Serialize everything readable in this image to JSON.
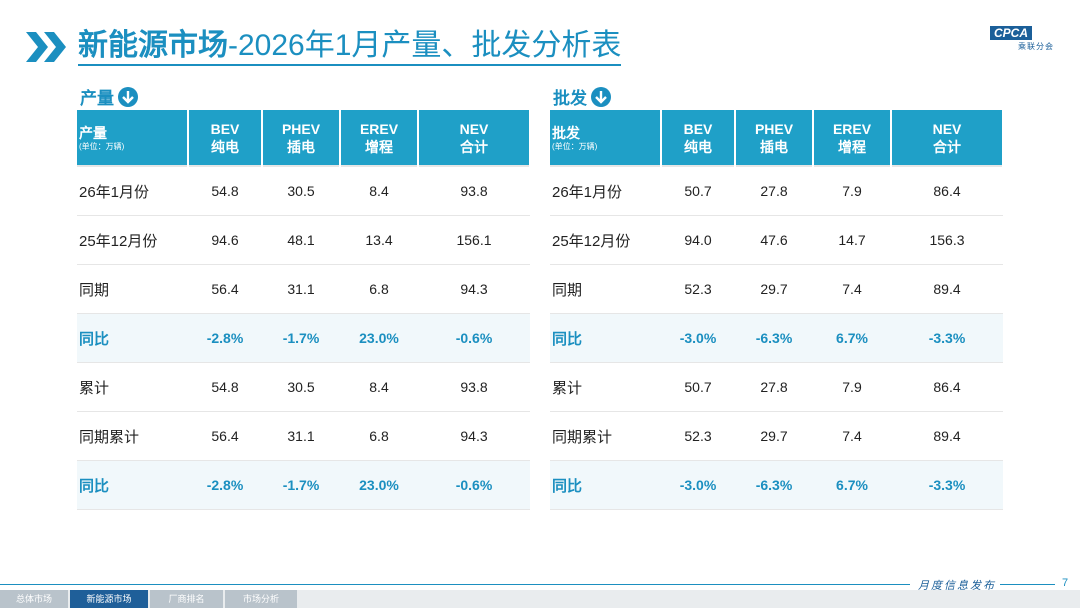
{
  "header": {
    "title_main": "新能源市场",
    "title_rest": "-2026年1月产量、批发分析表",
    "logo": "CPCA",
    "logo_sub": "乘联分会"
  },
  "tables": [
    {
      "section_label": "产量",
      "header_label": "产量",
      "unit": "(单位：万辆)",
      "columns": [
        {
          "name": "BEV",
          "sub": "纯电"
        },
        {
          "name": "PHEV",
          "sub": "插电"
        },
        {
          "name": "EREV",
          "sub": "增程"
        },
        {
          "name": "NEV",
          "sub": "合计"
        }
      ],
      "rows": [
        {
          "label": "26年1月份",
          "cells": [
            "54.8",
            "30.5",
            "8.4",
            "93.8"
          ]
        },
        {
          "label": "25年12月份",
          "cells": [
            "94.6",
            "48.1",
            "13.4",
            "156.1"
          ]
        },
        {
          "label": "同期",
          "cells": [
            "56.4",
            "31.1",
            "6.8",
            "94.3"
          ]
        },
        {
          "label": "同比",
          "cells": [
            "-2.8%",
            "-1.7%",
            "23.0%",
            "-0.6%"
          ]
        },
        {
          "label": "累计",
          "cells": [
            "54.8",
            "30.5",
            "8.4",
            "93.8"
          ]
        },
        {
          "label": "同期累计",
          "cells": [
            "56.4",
            "31.1",
            "6.8",
            "94.3"
          ]
        },
        {
          "label": "同比",
          "cells": [
            "-2.8%",
            "-1.7%",
            "23.0%",
            "-0.6%"
          ]
        }
      ]
    },
    {
      "section_label": "批发",
      "header_label": "批发",
      "unit": "(单位：万辆)",
      "columns": [
        {
          "name": "BEV",
          "sub": "纯电"
        },
        {
          "name": "PHEV",
          "sub": "插电"
        },
        {
          "name": "EREV",
          "sub": "增程"
        },
        {
          "name": "NEV",
          "sub": "合计"
        }
      ],
      "rows": [
        {
          "label": "26年1月份",
          "cells": [
            "50.7",
            "27.8",
            "7.9",
            "86.4"
          ]
        },
        {
          "label": "25年12月份",
          "cells": [
            "94.0",
            "47.6",
            "14.7",
            "156.3"
          ]
        },
        {
          "label": "同期",
          "cells": [
            "52.3",
            "29.7",
            "7.4",
            "89.4"
          ]
        },
        {
          "label": "同比",
          "cells": [
            "-3.0%",
            "-6.3%",
            "6.7%",
            "-3.3%"
          ]
        },
        {
          "label": "累计",
          "cells": [
            "50.7",
            "27.8",
            "7.9",
            "86.4"
          ]
        },
        {
          "label": "同期累计",
          "cells": [
            "52.3",
            "29.7",
            "7.4",
            "89.4"
          ]
        },
        {
          "label": "同比",
          "cells": [
            "-3.0%",
            "-6.3%",
            "6.7%",
            "-3.3%"
          ]
        }
      ]
    }
  ],
  "footer": {
    "tabs": [
      "总体市场",
      "新能源市场",
      "厂商排名",
      "市场分析"
    ],
    "release": "月度信息发布",
    "page": "7"
  }
}
